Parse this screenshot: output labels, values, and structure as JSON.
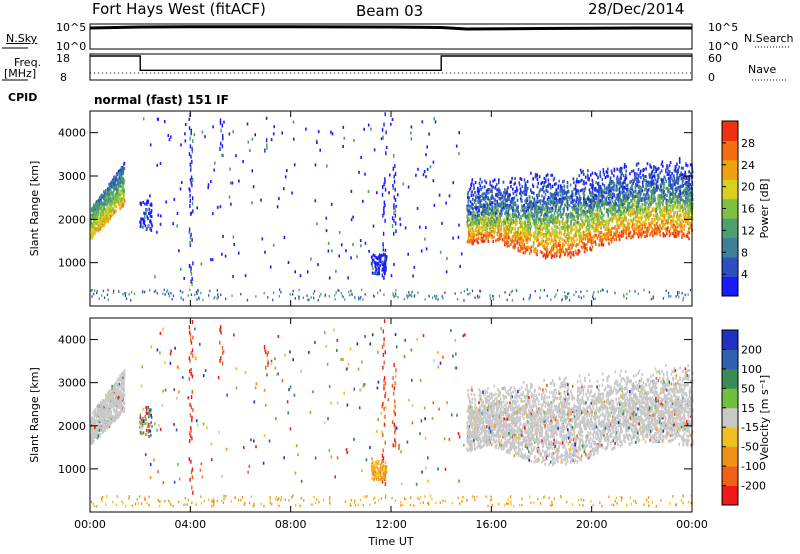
{
  "header": {
    "station": "Fort Hays West (fitACF)",
    "beam": "Beam 03",
    "date": "28/Dec/2014"
  },
  "side_labels": {
    "nsky": "N.Sky",
    "nsearch": "N.Search",
    "freq_top": "Freq.",
    "freq_unit": "[MHz]",
    "nave": "Nave",
    "cpid": "CPID",
    "cpid_value": "normal (fast) 151 IF"
  },
  "colors": {
    "power": [
      "#1a1aff",
      "#2f4fc0",
      "#3d7f9a",
      "#4d9f70",
      "#7fc040",
      "#d8d020",
      "#f0a010",
      "#f07010",
      "#f03010"
    ],
    "velocity": [
      "#2030c0",
      "#3060b0",
      "#3e8a56",
      "#70c040",
      "#c8c8c8",
      "#f0c020",
      "#f09018",
      "#f06018",
      "#f01818"
    ],
    "ground_scatter": "#c8c8c8"
  },
  "chart_data": [
    {
      "type": "line",
      "panel": "noise",
      "ylabel": "N.Sky",
      "yticks": [
        "10^5",
        "10^0"
      ],
      "right_yticks": [
        "10^5",
        "10^0"
      ],
      "series": [
        {
          "x_hours": [
            0,
            2,
            4,
            8,
            12,
            14,
            15,
            18,
            22,
            24
          ],
          "values": [
            4.2,
            4.4,
            4.45,
            4.45,
            4.4,
            4.3,
            4.0,
            4.1,
            4.2,
            4.2
          ]
        }
      ]
    },
    {
      "type": "line",
      "panel": "frequency",
      "ylabel": "Freq. [MHz]",
      "yticks": [
        "18",
        "8"
      ],
      "right_yticks": [
        "60",
        "0"
      ],
      "series": [
        {
          "x_hours": [
            0,
            2,
            2,
            14,
            14,
            24
          ],
          "values": [
            18,
            18,
            11.5,
            11.5,
            18,
            18
          ]
        }
      ]
    },
    {
      "type": "heatmap",
      "panel": "power",
      "ylabel": "Slant Range [km]",
      "ylim": [
        0,
        4500
      ],
      "yticks": [
        "1000",
        "2000",
        "3000",
        "4000"
      ],
      "colorbar_label": "Power [dB]",
      "colorbar_ticks": [
        "28",
        "24",
        "20",
        "16",
        "12",
        "8",
        "4"
      ]
    },
    {
      "type": "heatmap",
      "panel": "velocity",
      "ylabel": "Slant Range [km]",
      "ylim": [
        0,
        4500
      ],
      "yticks": [
        "1000",
        "2000",
        "3000",
        "4000"
      ],
      "colorbar_label": "Velocity [m s⁻¹]",
      "colorbar_ticks": [
        "200",
        "100",
        "50",
        "15",
        "-15",
        "-50",
        "-100",
        "-200"
      ]
    }
  ],
  "x_axis": {
    "label": "Time UT",
    "range_hours": [
      0,
      24
    ],
    "ticks": [
      "00:00",
      "04:00",
      "08:00",
      "12:00",
      "16:00",
      "20:00",
      "00:00"
    ]
  }
}
